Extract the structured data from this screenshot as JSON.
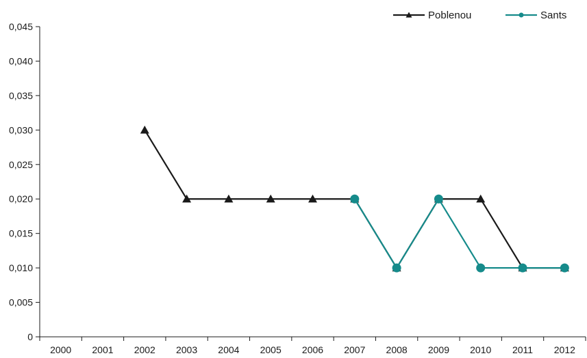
{
  "chart_data": {
    "type": "line",
    "categories": [
      "2000",
      "2001",
      "2002",
      "2003",
      "2004",
      "2005",
      "2006",
      "2007",
      "2008",
      "2009",
      "2010",
      "2011",
      "2012"
    ],
    "y_tick_labels": [
      "0",
      "0,005",
      "0,010",
      "0,015",
      "0,020",
      "0,025",
      "0,030",
      "0,035",
      "0,040",
      "0,045"
    ],
    "ylim": [
      0,
      0.045
    ],
    "y_step": 0.005,
    "grid": false,
    "legend_position": "top-right",
    "series": [
      {
        "name": "Poblenou",
        "color": "#1a1a1a",
        "marker": "triangle",
        "values": [
          null,
          null,
          0.03,
          0.02,
          0.02,
          0.02,
          0.02,
          0.02,
          0.01,
          0.02,
          0.02,
          0.01,
          0.01
        ]
      },
      {
        "name": "Sants",
        "color": "#168b8b",
        "marker": "circle",
        "values": [
          null,
          null,
          null,
          null,
          null,
          null,
          null,
          0.02,
          0.01,
          0.02,
          0.01,
          0.01,
          0.01
        ]
      }
    ]
  }
}
